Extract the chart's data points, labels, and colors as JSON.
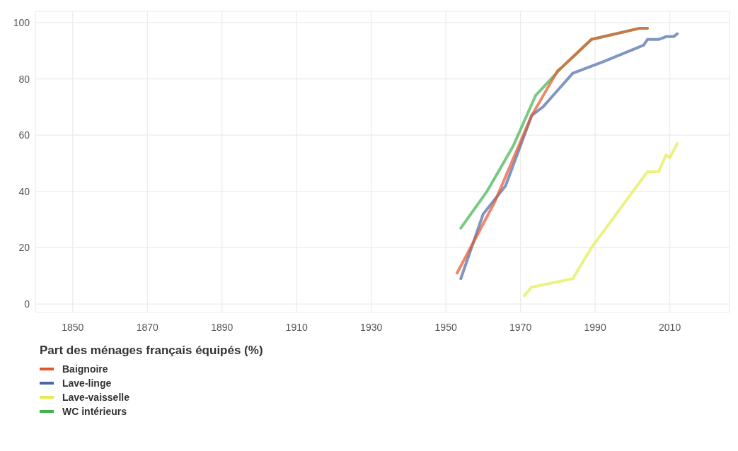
{
  "chart_data": {
    "type": "line",
    "legend_title": "Part des ménages français équipés (%)",
    "legend": "bottom left",
    "grid": true,
    "marker": "none",
    "line_style": "solid",
    "xlim": [
      1840,
      2026
    ],
    "xticks": [
      1850,
      1870,
      1890,
      1910,
      1930,
      1950,
      1970,
      1990,
      2010
    ],
    "ylim": [
      -3,
      104
    ],
    "yticks": [
      0,
      20,
      40,
      60,
      80,
      100
    ],
    "series": [
      {
        "name": "Baignoire",
        "color": "#e4572e",
        "x": [
          1953,
          1963,
          1973,
          1980,
          1981,
          1989,
          2002,
          2004
        ],
        "values": [
          11,
          36,
          67,
          83,
          84,
          94,
          98,
          98
        ]
      },
      {
        "name": "Lave-linge",
        "color": "#4a68a8",
        "x": [
          1954,
          1960,
          1966,
          1973,
          1976,
          1980,
          1984,
          1992,
          2003,
          2004,
          2007,
          2009,
          2011,
          2012
        ],
        "values": [
          9,
          32,
          42,
          67,
          70,
          76,
          82,
          86,
          92,
          94,
          94,
          95,
          95,
          96
        ]
      },
      {
        "name": "Lave-vaisselle",
        "color": "#e3ec4a",
        "x": [
          1971,
          1973,
          1984,
          1989,
          2004,
          2007,
          2009,
          2010,
          2012
        ],
        "values": [
          3,
          6,
          9,
          20,
          47,
          47,
          53,
          52,
          57
        ]
      },
      {
        "name": "WC intérieurs",
        "color": "#3fb34f",
        "x": [
          1954,
          1961,
          1968,
          1974,
          1981,
          1989,
          2002,
          2004
        ],
        "values": [
          27,
          40,
          56,
          74,
          84,
          94,
          98,
          98
        ]
      }
    ]
  }
}
